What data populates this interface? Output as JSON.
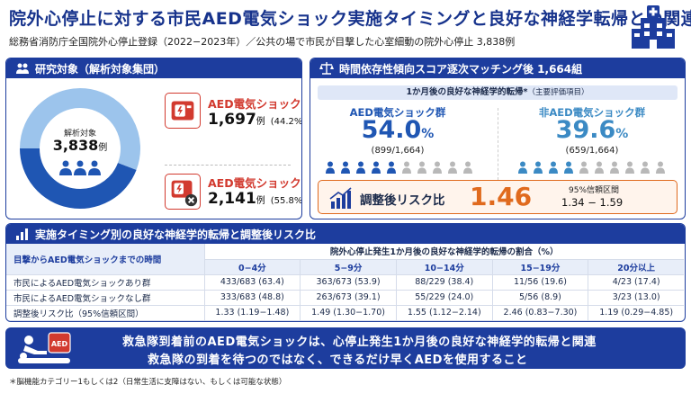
{
  "header": {
    "title": "院外心停止に対する市民AED電気ショック実施タイミングと良好な神経学転帰との関連",
    "subtitle": "総務省消防庁全国院外心停止登録（2022−2023年）／公共の場で市民が目撃した心室細動の院外心停止 3,838例"
  },
  "study": {
    "heading": "研究対象（解析対象集団）",
    "center_label": "解析対象",
    "center_value": "3,838",
    "center_unit": "例",
    "aed_yes_title": "AED電気ショックあり",
    "aed_yes_count": "1,697",
    "aed_yes_unit": "例",
    "aed_yes_pct": "(44.2%)",
    "aed_yes_fraction": 0.442,
    "aed_no_title": "AED電気ショックなし",
    "aed_no_count": "2,141",
    "aed_no_unit": "例",
    "aed_no_pct": "(55.8%)",
    "colors": {
      "yes": "#1f56b3",
      "no": "#9cc4ec",
      "alert": "#d23a2f"
    }
  },
  "matching": {
    "heading": "時間依存性傾向スコア逐次マッチング後 1,664組",
    "primary": "1か月後の良好な神経学的転帰*",
    "primary_note": "（主要評価項目）",
    "aed_group_title": "AED電気ショック群",
    "aed_group_pct": "54.0",
    "aed_group_frac": "(899/1,664)",
    "aed_group_filled": 5,
    "non_group_title": "非AED電気ショック群",
    "non_group_pct": "39.6",
    "non_group_frac": "(659/1,664)",
    "non_group_filled": 4,
    "pct_sign": "%",
    "risk_label": "調整後リスク比",
    "risk_value": "1.46",
    "ci_label": "95%信頼区間",
    "ci_value": "1.34 − 1.59",
    "colors": {
      "aed": "#1f56b3",
      "non": "#3b8ac4",
      "grey": "#b8b8b8",
      "risk": "#e06a1e"
    }
  },
  "table": {
    "heading": "実施タイミング別の良好な神経学的転帰と調整後リスク比",
    "row_header": "目撃からAED電気ショックまでの時間",
    "group_header": "院外心停止発生1か月後の良好な神経学的転帰の割合（%）",
    "categories": [
      "0−4分",
      "5−9分",
      "10−14分",
      "15−19分",
      "20分以上"
    ],
    "rows": [
      {
        "label": "市民によるAED電気ショックあり群",
        "values": [
          "433/683 (63.4)",
          "363/673 (53.9)",
          "88/229 (38.4)",
          "11/56 (19.6)",
          "4/23 (17.4)"
        ]
      },
      {
        "label": "市民によるAED電気ショックなし群",
        "values": [
          "333/683 (48.8)",
          "263/673 (39.1)",
          "55/229 (24.0)",
          "5/56 (8.9)",
          "3/23 (13.0)"
        ]
      },
      {
        "label": "調整後リスク比（95%信頼区間）",
        "values": [
          "1.33 (1.19−1.48)",
          "1.49 (1.30−1.70)",
          "1.55 (1.12−2.14)",
          "2.46 (0.83−7.30)",
          "1.19 (0.29−4.85)"
        ]
      }
    ]
  },
  "banner": {
    "line1": "救急隊到着前のAED電気ショックは、心停止発生1か月後の良好な神経学的転帰と関連",
    "line2": "救急隊の到着を待つのではなく、できるだけ早くAEDを使用すること",
    "icon_text": "AED"
  },
  "footnote": "＊脳機能カテゴリー1もしくは2（日常生活に支障はない、もしくは可能な状態）"
}
